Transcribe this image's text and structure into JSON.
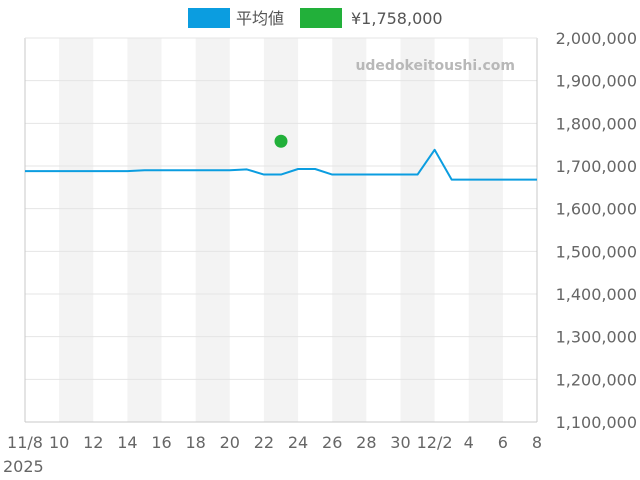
{
  "chart_data": {
    "type": "line",
    "title": "",
    "xlabel": "",
    "ylabel": "",
    "x_tick_labels": [
      "11/8",
      "10",
      "12",
      "14",
      "16",
      "18",
      "20",
      "22",
      "24",
      "26",
      "28",
      "30",
      "12/2",
      "4",
      "6",
      "8"
    ],
    "x_year_label": "2025",
    "ylim": [
      1100000,
      2000000
    ],
    "y_tick_values": [
      1100000,
      1200000,
      1300000,
      1400000,
      1500000,
      1600000,
      1700000,
      1800000,
      1900000,
      2000000
    ],
    "y_tick_labels": [
      "1,100,000",
      "1,200,000",
      "1,300,000",
      "1,400,000",
      "1,500,000",
      "1,600,000",
      "1,700,000",
      "1,800,000",
      "1,900,000",
      "2,000,000"
    ],
    "y_axis_position": "right",
    "grid": true,
    "alternating_bands": true,
    "legend_position": "top-center",
    "series": [
      {
        "name": "平均値",
        "color": "#0b9de0",
        "x": [
          "2025-11-08",
          "2025-11-09",
          "2025-11-10",
          "2025-11-11",
          "2025-11-12",
          "2025-11-13",
          "2025-11-14",
          "2025-11-15",
          "2025-11-16",
          "2025-11-17",
          "2025-11-18",
          "2025-11-19",
          "2025-11-20",
          "2025-11-21",
          "2025-11-22",
          "2025-11-23",
          "2025-11-24",
          "2025-11-25",
          "2025-11-26",
          "2025-11-27",
          "2025-11-28",
          "2025-11-29",
          "2025-11-30",
          "2025-12-01",
          "2025-12-02",
          "2025-12-03",
          "2025-12-04",
          "2025-12-05",
          "2025-12-06",
          "2025-12-07",
          "2025-12-08"
        ],
        "values": [
          1688000,
          1688000,
          1688000,
          1688000,
          1688000,
          1688000,
          1688000,
          1690000,
          1690000,
          1690000,
          1690000,
          1690000,
          1690000,
          1692000,
          1680000,
          1680000,
          1693000,
          1693000,
          1680000,
          1680000,
          1680000,
          1680000,
          1680000,
          1680000,
          1738000,
          1668000,
          1668000,
          1668000,
          1668000,
          1668000,
          1668000
        ]
      },
      {
        "name": "¥1,758,000",
        "color": "#22b03a",
        "type": "scatter",
        "x": [
          "2025-11-23"
        ],
        "values": [
          1758000
        ]
      }
    ]
  },
  "watermark": "udedokeitoushi.com",
  "colors": {
    "band": "#f3f3f3",
    "grid": "#e4e4e4",
    "axis": "#c8c8c8"
  }
}
